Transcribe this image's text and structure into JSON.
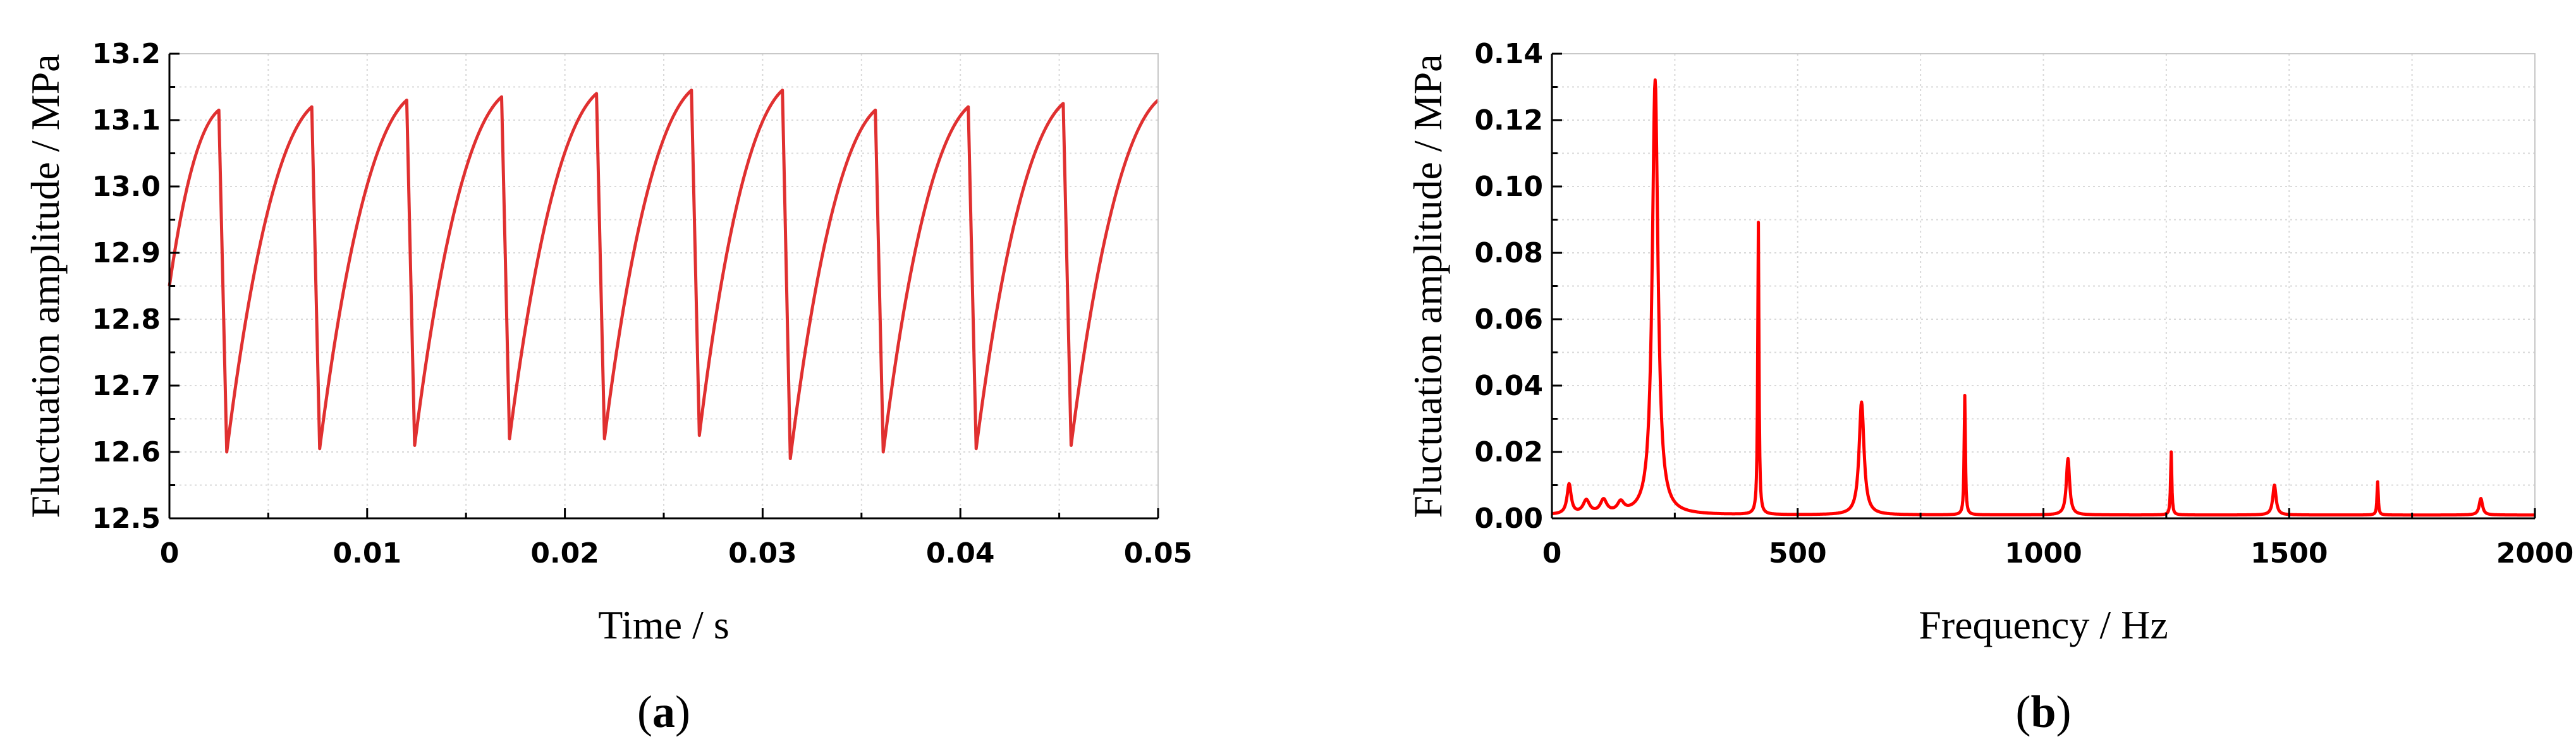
{
  "chart_data": [
    {
      "type": "line",
      "panel_label": "a",
      "xlabel": "Time / s",
      "ylabel": "Fluctuation amplitude / MPa",
      "xlim": [
        0,
        0.05
      ],
      "ylim": [
        12.5,
        13.2
      ],
      "xticks": [
        "0",
        "0.01",
        "0.02",
        "0.03",
        "0.04",
        "0.05"
      ],
      "yticks": [
        "12.5",
        "12.6",
        "12.7",
        "12.8",
        "12.9",
        "13.0",
        "13.1",
        "13.2"
      ],
      "grid": true,
      "color": "#e03030",
      "series": [
        {
          "x": [
            0,
            0.0025,
            0.0029,
            0.0072,
            0.0076,
            0.012,
            0.0124,
            0.0168,
            0.0172,
            0.0216,
            0.022,
            0.0264,
            0.0268,
            0.031,
            0.0314,
            0.0357,
            0.0361,
            0.0404,
            0.0408,
            0.0452,
            0.0456,
            0.05
          ],
          "y": [
            12.85,
            13.115,
            12.6,
            13.12,
            12.605,
            13.13,
            12.61,
            13.135,
            12.62,
            13.14,
            12.62,
            13.145,
            12.625,
            13.145,
            12.59,
            13.115,
            12.6,
            13.12,
            12.605,
            13.125,
            12.61,
            13.13
          ]
        }
      ]
    },
    {
      "type": "line",
      "panel_label": "b",
      "xlabel": "Frequency / Hz",
      "ylabel": "Fluctuation amplitude / MPa",
      "xlim": [
        0,
        2000
      ],
      "ylim": [
        0,
        0.14
      ],
      "xticks": [
        "0",
        "500",
        "1000",
        "1500",
        "2000"
      ],
      "yticks": [
        "0.00",
        "0.02",
        "0.04",
        "0.06",
        "0.08",
        "0.10",
        "0.12",
        "0.14"
      ],
      "grid": true,
      "color": "#ff0000",
      "baseline": 0.001,
      "peaks": [
        {
          "f": 35,
          "amp": 0.009,
          "width": 5
        },
        {
          "f": 70,
          "amp": 0.004,
          "width": 8
        },
        {
          "f": 105,
          "amp": 0.004,
          "width": 8
        },
        {
          "f": 140,
          "amp": 0.003,
          "width": 8
        },
        {
          "f": 210,
          "amp": 0.131,
          "width": 7
        },
        {
          "f": 420,
          "amp": 0.088,
          "width": 1.5
        },
        {
          "f": 630,
          "amp": 0.034,
          "width": 6
        },
        {
          "f": 840,
          "amp": 0.036,
          "width": 1.5
        },
        {
          "f": 1050,
          "amp": 0.017,
          "width": 4
        },
        {
          "f": 1260,
          "amp": 0.019,
          "width": 1.5
        },
        {
          "f": 1470,
          "amp": 0.009,
          "width": 4
        },
        {
          "f": 1680,
          "amp": 0.01,
          "width": 1.5
        },
        {
          "f": 1890,
          "amp": 0.005,
          "width": 4
        }
      ]
    }
  ]
}
